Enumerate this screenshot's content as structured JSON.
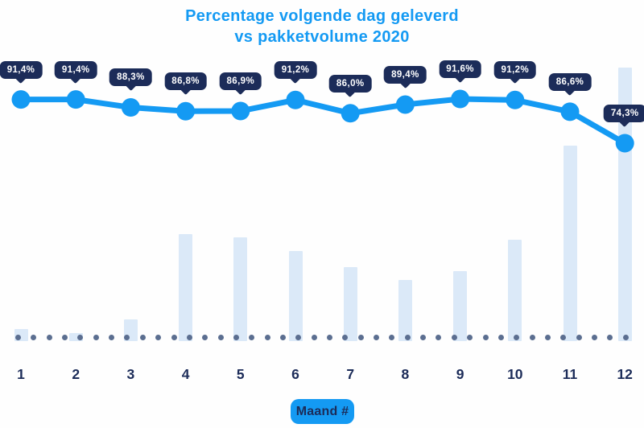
{
  "title": {
    "line1": "Percentage volgende dag geleverd",
    "line2": "vs pakketvolume 2020"
  },
  "x_axis_badge": "Maand #",
  "chart_data": {
    "type": "line",
    "subtype": "combo-line-bar",
    "title": "Percentage volgende dag geleverd vs pakketvolume 2020",
    "xlabel": "Maand #",
    "categories": [
      "1",
      "2",
      "3",
      "4",
      "5",
      "6",
      "7",
      "8",
      "9",
      "10",
      "11",
      "12"
    ],
    "series": [
      {
        "name": "Percentage volgende dag geleverd",
        "type": "line",
        "unit": "%",
        "values": [
          91.4,
          91.4,
          88.3,
          86.8,
          86.9,
          91.2,
          86.0,
          89.4,
          91.6,
          91.2,
          86.6,
          74.3
        ],
        "labels": [
          "91,4%",
          "91,4%",
          "88,3%",
          "86,8%",
          "86,9%",
          "91,2%",
          "86,0%",
          "89,4%",
          "91,6%",
          "91,2%",
          "86,6%",
          "74,3%"
        ]
      },
      {
        "name": "Pakketvolume 2020",
        "type": "bar",
        "unit": "relative (max month = 100)",
        "values": [
          4.5,
          3,
          8,
          39,
          38,
          33,
          27,
          22.5,
          25.5,
          37,
          71.5,
          100
        ]
      }
    ],
    "axis_ranges": {
      "percentage_visible_labels": true,
      "volume_axis_labels": "none shown"
    },
    "legend": "none",
    "grid": "dotted baseline only"
  },
  "colors": {
    "accent_blue": "#149af3",
    "navy": "#1c2c59",
    "bar_fill": "#dbe9f8",
    "baseline_dot": "#5b6e90",
    "tooltip_text": "#ffffff",
    "background": "#fefefe"
  }
}
